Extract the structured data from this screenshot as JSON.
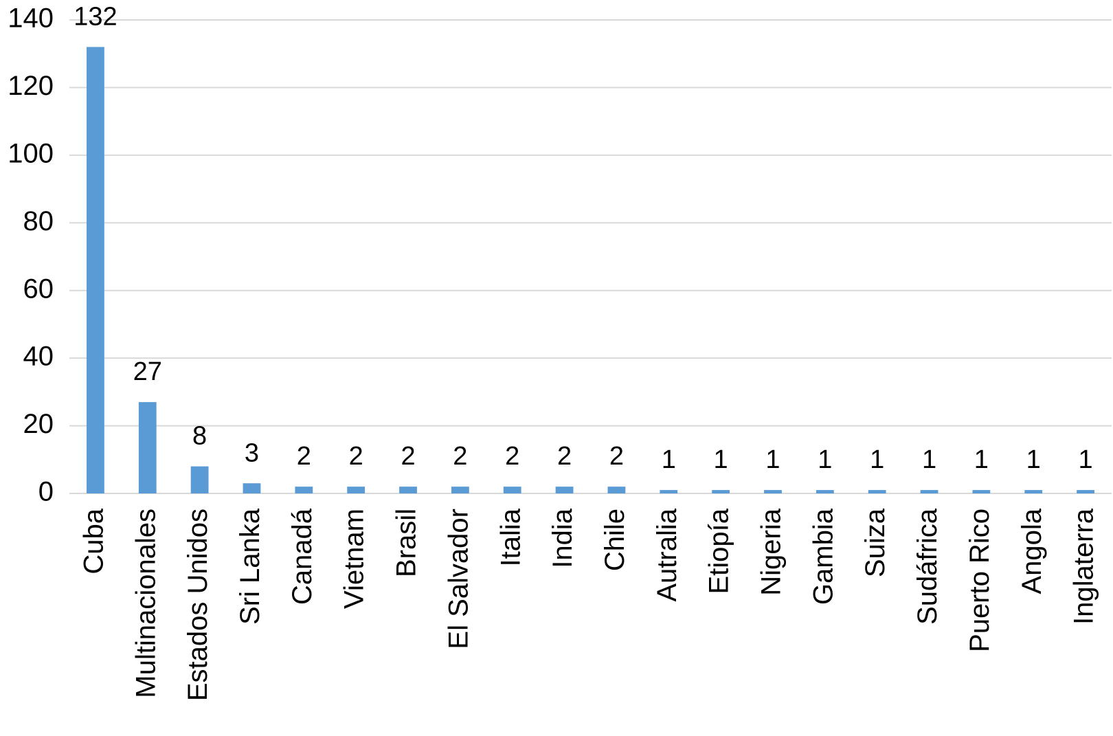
{
  "chart_data": {
    "type": "bar",
    "categories": [
      "Cuba",
      "Multinacionales",
      "Estados Unidos",
      "Sri Lanka",
      "Canadá",
      "Vietnam",
      "Brasil",
      "El Salvador",
      "Italia",
      "India",
      "Chile",
      "Autralia",
      "Etiopía",
      "Nigeria",
      "Gambia",
      "Suiza",
      "Sudáfrica",
      "Puerto Rico",
      "Angola",
      "Inglaterra"
    ],
    "values": [
      132,
      27,
      8,
      3,
      2,
      2,
      2,
      2,
      2,
      2,
      2,
      1,
      1,
      1,
      1,
      1,
      1,
      1,
      1,
      1
    ],
    "color": "#5b9bd5",
    "ylim": [
      0,
      140
    ],
    "yticks": [
      0,
      20,
      40,
      60,
      80,
      100,
      120,
      140
    ],
    "grid": true,
    "data_labels": true
  }
}
